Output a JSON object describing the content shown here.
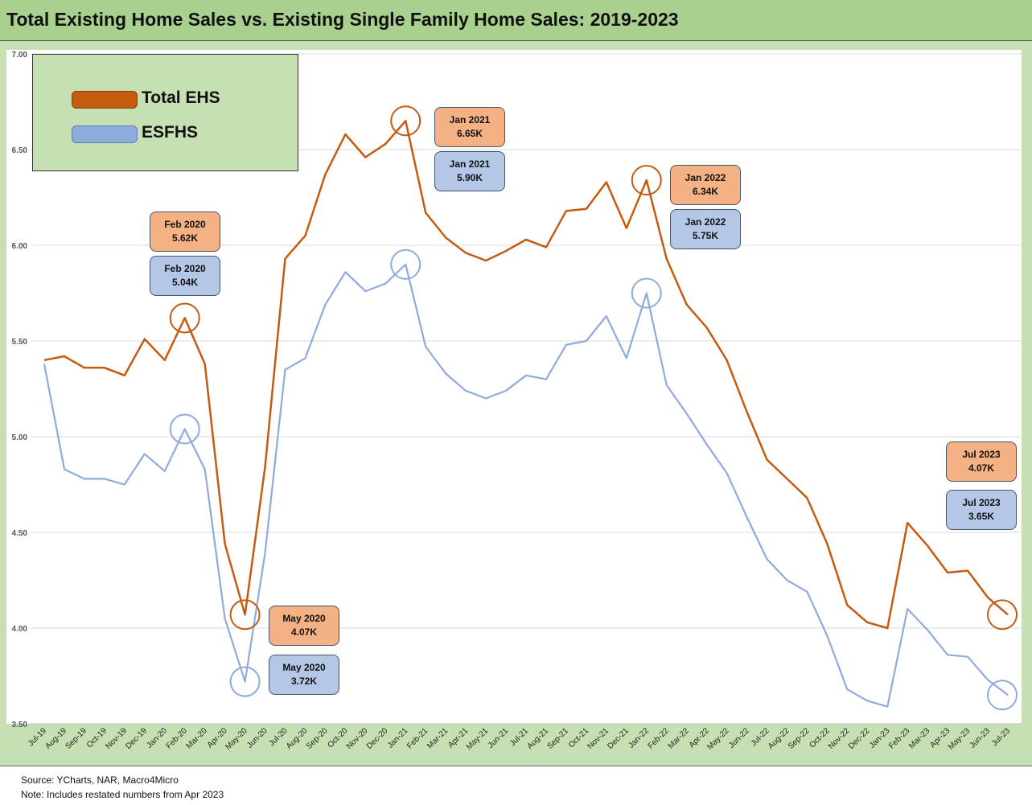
{
  "title": "Total Existing Home Sales vs. Existing Single Family Home Sales: 2019-2023",
  "source": {
    "line1": "Source: YCharts, NAR, Macro4Micro",
    "line2": "Note: Includes restated numbers from Apr 2023"
  },
  "colors": {
    "total": "#c55a11",
    "esfhs": "#8faadc",
    "callout_orange": "#f4b183",
    "callout_blue": "#b4c7e7"
  },
  "legend": {
    "total_label": "Total EHS",
    "esfhs_label": "ESFHS"
  },
  "callouts": [
    {
      "id": "feb2020-total",
      "line1": "Feb 2020",
      "line2": "5.62K"
    },
    {
      "id": "feb2020-esfhs",
      "line1": "Feb 2020",
      "line2": "5.04K"
    },
    {
      "id": "may2020-total",
      "line1": "May 2020",
      "line2": "4.07K"
    },
    {
      "id": "may2020-esfhs",
      "line1": "May 2020",
      "line2": "3.72K"
    },
    {
      "id": "jan2021-total",
      "line1": "Jan 2021",
      "line2": "6.65K"
    },
    {
      "id": "jan2021-esfhs",
      "line1": "Jan 2021",
      "line2": "5.90K"
    },
    {
      "id": "jan2022-total",
      "line1": "Jan 2022",
      "line2": "6.34K"
    },
    {
      "id": "jan2022-esfhs",
      "line1": "Jan 2022",
      "line2": "5.75K"
    },
    {
      "id": "jul2023-total",
      "line1": "Jul 2023",
      "line2": "4.07K"
    },
    {
      "id": "jul2023-esfhs",
      "line1": "Jul 2023",
      "line2": "3.65K"
    }
  ],
  "chart_data": {
    "type": "line",
    "title": "Total Existing Home Sales vs. Existing Single Family Home Sales: 2019-2023",
    "xlabel": "",
    "ylabel": "",
    "ylim": [
      3.5,
      7.0
    ],
    "yticks": [
      "3.50",
      "4.00",
      "4.50",
      "5.00",
      "5.50",
      "6.00",
      "6.50",
      "7.00"
    ],
    "grid": true,
    "legend_position": "top-left",
    "categories": [
      "Jul-19",
      "Aug-19",
      "Sep-19",
      "Oct-19",
      "Nov-19",
      "Dec-19",
      "Jan-20",
      "Feb-20",
      "Mar-20",
      "Apr-20",
      "May-20",
      "Jun-20",
      "Jul-20",
      "Aug-20",
      "Sep-20",
      "Oct-20",
      "Nov-20",
      "Dec-20",
      "Jan-21",
      "Feb-21",
      "Mar-21",
      "Apr-21",
      "May-21",
      "Jun-21",
      "Jul-21",
      "Aug-21",
      "Sep-21",
      "Oct-21",
      "Nov-21",
      "Dec-21",
      "Jan-22",
      "Feb-22",
      "Mar-22",
      "Apr-22",
      "May-22",
      "Jun-22",
      "Jul-22",
      "Aug-22",
      "Sep-22",
      "Oct-22",
      "Nov-22",
      "Dec-22",
      "Jan-23",
      "Feb-23",
      "Mar-23",
      "Apr-23",
      "May-23",
      "Jun-23",
      "Jul-23"
    ],
    "series": [
      {
        "name": "Total EHS",
        "values": [
          5.4,
          5.42,
          5.36,
          5.36,
          5.32,
          5.51,
          5.4,
          5.62,
          5.38,
          4.44,
          4.07,
          4.84,
          5.93,
          6.05,
          6.37,
          6.58,
          6.46,
          6.53,
          6.65,
          6.17,
          6.04,
          5.96,
          5.92,
          5.97,
          6.03,
          5.99,
          6.18,
          6.19,
          6.33,
          6.09,
          6.34,
          5.93,
          5.69,
          5.57,
          5.4,
          5.13,
          4.88,
          4.78,
          4.68,
          4.44,
          4.12,
          4.03,
          4.0,
          4.55,
          4.43,
          4.29,
          4.3,
          4.16,
          4.07
        ]
      },
      {
        "name": "ESFHS",
        "values": [
          5.38,
          4.83,
          4.78,
          4.78,
          4.75,
          4.91,
          4.82,
          5.04,
          4.83,
          4.05,
          3.72,
          4.39,
          5.35,
          5.41,
          5.69,
          5.86,
          5.76,
          5.8,
          5.9,
          5.47,
          5.33,
          5.24,
          5.2,
          5.24,
          5.32,
          5.3,
          5.48,
          5.5,
          5.63,
          5.41,
          5.75,
          5.27,
          5.12,
          4.96,
          4.81,
          4.58,
          4.36,
          4.25,
          4.19,
          3.96,
          3.68,
          3.62,
          3.59,
          4.1,
          3.99,
          3.86,
          3.85,
          3.73,
          3.65
        ]
      }
    ],
    "highlights": [
      {
        "series": "Total EHS",
        "x": "Feb-20",
        "value": 5.62
      },
      {
        "series": "ESFHS",
        "x": "Feb-20",
        "value": 5.04
      },
      {
        "series": "Total EHS",
        "x": "May-20",
        "value": 4.07
      },
      {
        "series": "ESFHS",
        "x": "May-20",
        "value": 3.72
      },
      {
        "series": "Total EHS",
        "x": "Jan-21",
        "value": 6.65
      },
      {
        "series": "ESFHS",
        "x": "Jan-21",
        "value": 5.9
      },
      {
        "series": "Total EHS",
        "x": "Jan-22",
        "value": 6.34
      },
      {
        "series": "ESFHS",
        "x": "Jan-22",
        "value": 5.75
      },
      {
        "series": "Total EHS",
        "x": "Jul-23",
        "value": 4.07
      },
      {
        "series": "ESFHS",
        "x": "Jul-23",
        "value": 3.65
      }
    ]
  }
}
